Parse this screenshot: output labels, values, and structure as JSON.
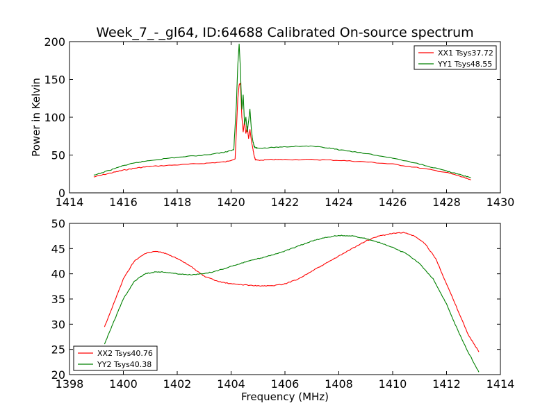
{
  "title": "Week_7_-_gl64, ID:64688 Calibrated On-source spectrum",
  "chart_data": [
    {
      "type": "line",
      "xlabel": "",
      "ylabel": "Power in Kelvin",
      "xlim": [
        1414,
        1430
      ],
      "ylim": [
        0,
        200
      ],
      "xticks": [
        "1414",
        "1416",
        "1418",
        "1420",
        "1422",
        "1424",
        "1426",
        "1428",
        "1430"
      ],
      "yticks": [
        "0",
        "50",
        "100",
        "150",
        "200"
      ],
      "legend_position": "top-right",
      "series": [
        {
          "name": "XX1 Tsys37.72",
          "color": "#ff0000",
          "x": [
            1414.9,
            1415.5,
            1416.0,
            1416.5,
            1417.0,
            1418.0,
            1419.0,
            1419.8,
            1420.15,
            1420.25,
            1420.3,
            1420.35,
            1420.4,
            1420.45,
            1420.5,
            1420.55,
            1420.6,
            1420.65,
            1420.7,
            1420.75,
            1420.8,
            1420.85,
            1420.9,
            1421.0,
            1421.5,
            1422.0,
            1423.0,
            1424.0,
            1425.0,
            1426.0,
            1427.0,
            1428.0,
            1428.5,
            1428.9
          ],
          "y": [
            21,
            26,
            30,
            33,
            35,
            37,
            39,
            41,
            45,
            125,
            143,
            145,
            100,
            80,
            95,
            78,
            88,
            72,
            84,
            70,
            60,
            50,
            44,
            43,
            44,
            44,
            44,
            43,
            41,
            38,
            33,
            27,
            22,
            17
          ]
        },
        {
          "name": "YY1 Tsys48.55",
          "color": "#008000",
          "x": [
            1414.9,
            1415.5,
            1416.0,
            1416.5,
            1417.0,
            1418.0,
            1419.0,
            1419.8,
            1420.1,
            1420.2,
            1420.25,
            1420.3,
            1420.35,
            1420.4,
            1420.45,
            1420.5,
            1420.55,
            1420.6,
            1420.65,
            1420.7,
            1420.75,
            1420.8,
            1420.85,
            1420.9,
            1421.0,
            1421.5,
            1422.0,
            1422.8,
            1423.5,
            1424.0,
            1425.0,
            1426.0,
            1427.0,
            1428.0,
            1428.5,
            1428.9
          ],
          "y": [
            23,
            30,
            36,
            40,
            43,
            47,
            50,
            54,
            57,
            120,
            170,
            197,
            160,
            110,
            130,
            90,
            100,
            80,
            95,
            111,
            85,
            70,
            62,
            60,
            59,
            60,
            61,
            62,
            60,
            57,
            52,
            46,
            38,
            29,
            24,
            20
          ]
        }
      ]
    },
    {
      "type": "line",
      "xlabel": "Frequency (MHz)",
      "ylabel": "",
      "xlim": [
        1398,
        1414
      ],
      "ylim": [
        20,
        50
      ],
      "xticks": [
        "1398",
        "1400",
        "1402",
        "1404",
        "1406",
        "1408",
        "1410",
        "1412",
        "1414"
      ],
      "yticks": [
        "20",
        "25",
        "30",
        "35",
        "40",
        "45",
        "50"
      ],
      "legend_position": "bottom-left",
      "series": [
        {
          "name": "XX2 Tsys40.76",
          "color": "#ff0000",
          "x": [
            1399.3,
            1399.6,
            1400.0,
            1400.4,
            1400.8,
            1401.2,
            1401.6,
            1402.0,
            1402.5,
            1403.0,
            1403.5,
            1404.0,
            1404.5,
            1405.0,
            1405.5,
            1406.0,
            1406.5,
            1407.0,
            1407.5,
            1408.0,
            1408.5,
            1409.0,
            1409.5,
            1410.0,
            1410.4,
            1410.8,
            1411.2,
            1411.6,
            1412.0,
            1412.4,
            1412.8,
            1413.2
          ],
          "y": [
            29.5,
            33.5,
            39,
            42.5,
            44,
            44.5,
            44,
            43,
            41.5,
            39.5,
            38.5,
            38,
            37.8,
            37.6,
            37.6,
            38,
            39,
            40.5,
            42,
            43.5,
            45,
            46.5,
            47.5,
            48,
            48.2,
            47.5,
            46,
            43,
            38,
            33,
            28,
            24.5
          ]
        },
        {
          "name": "YY2 Tsys40.38",
          "color": "#008000",
          "x": [
            1399.3,
            1399.6,
            1400.0,
            1400.4,
            1400.8,
            1401.2,
            1401.6,
            1402.0,
            1402.5,
            1403.0,
            1403.5,
            1404.0,
            1404.5,
            1405.0,
            1405.5,
            1406.0,
            1406.5,
            1407.0,
            1407.5,
            1408.0,
            1408.5,
            1409.0,
            1409.5,
            1410.0,
            1410.5,
            1411.0,
            1411.5,
            1412.0,
            1412.4,
            1412.8,
            1413.2
          ],
          "y": [
            26,
            30,
            35,
            38.5,
            40,
            40.4,
            40.3,
            40,
            39.8,
            40,
            40.6,
            41.5,
            42.3,
            43,
            43.7,
            44.5,
            45.5,
            46.5,
            47.2,
            47.6,
            47.5,
            47,
            46.2,
            45.2,
            44,
            42,
            39,
            34,
            29,
            24.5,
            20.5
          ]
        }
      ]
    }
  ]
}
